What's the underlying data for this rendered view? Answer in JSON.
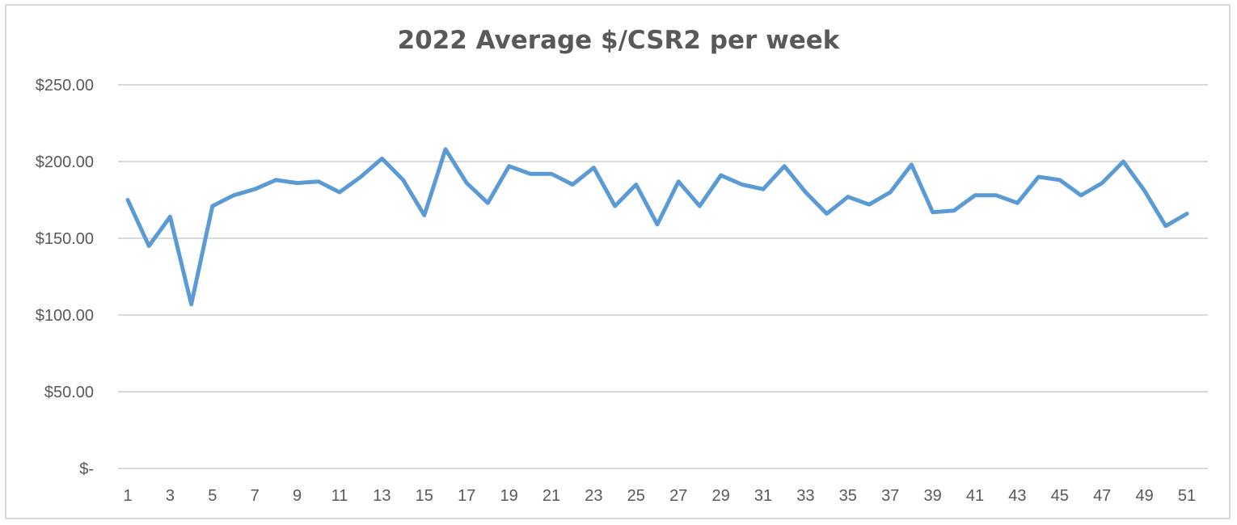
{
  "chart_data": {
    "type": "line",
    "title": "2022 Average $/CSR2 per week",
    "xlabel": "",
    "ylabel": "",
    "x": [
      1,
      2,
      3,
      4,
      5,
      6,
      7,
      8,
      9,
      10,
      11,
      12,
      13,
      14,
      15,
      16,
      17,
      18,
      19,
      20,
      21,
      22,
      23,
      24,
      25,
      26,
      27,
      28,
      29,
      30,
      31,
      32,
      33,
      34,
      35,
      36,
      37,
      38,
      39,
      40,
      41,
      42,
      43,
      44,
      45,
      46,
      47,
      48,
      49,
      50,
      51
    ],
    "x_tick_labels": [
      "1",
      "3",
      "5",
      "7",
      "9",
      "11",
      "13",
      "15",
      "17",
      "19",
      "21",
      "23",
      "25",
      "27",
      "29",
      "31",
      "33",
      "35",
      "37",
      "39",
      "41",
      "43",
      "45",
      "47",
      "49",
      "51"
    ],
    "y_ticks": [
      0,
      50,
      100,
      150,
      200,
      250
    ],
    "y_tick_labels": [
      "$-",
      "$50.00",
      "$100.00",
      "$150.00",
      "$200.00",
      "$250.00"
    ],
    "ylim": [
      0,
      250
    ],
    "grid": true,
    "legend": "none",
    "series": [
      {
        "color": "#5b9bd5",
        "values": [
          175,
          145,
          164,
          107,
          171,
          178,
          182,
          188,
          186,
          187,
          180,
          190,
          202,
          188,
          165,
          208,
          186,
          173,
          197,
          192,
          192,
          185,
          196,
          171,
          185,
          159,
          187,
          171,
          191,
          185,
          182,
          197,
          180,
          166,
          177,
          172,
          180,
          198,
          167,
          168,
          178,
          178,
          173,
          190,
          188,
          178,
          186,
          200,
          181,
          158,
          166
        ]
      }
    ]
  }
}
